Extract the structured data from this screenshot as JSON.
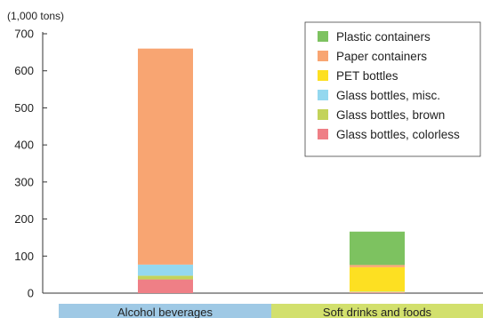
{
  "chart_data": {
    "type": "bar",
    "stacked": true,
    "unit_label": "(1,000 tons)",
    "ylim": [
      0,
      700
    ],
    "yticks": [
      0,
      100,
      200,
      300,
      400,
      500,
      600,
      700
    ],
    "grid": false,
    "legend_placement": "top-right",
    "categories": [
      "Alcohol beverages",
      "Soft drinks and foods"
    ],
    "category_colors": [
      "#9fc9e5",
      "#d2e06d"
    ],
    "series": [
      {
        "name": "Glass bottles, colorless",
        "color": "#ef7f86",
        "values": [
          37,
          2
        ]
      },
      {
        "name": "Glass bottles, brown",
        "color": "#c3d35a",
        "values": [
          10,
          1
        ]
      },
      {
        "name": "Glass bottles, misc.",
        "color": "#94d8ef",
        "values": [
          30,
          1
        ]
      },
      {
        "name": "PET bottles",
        "color": "#fde022",
        "values": [
          0,
          66
        ]
      },
      {
        "name": "Paper containers",
        "color": "#f8a572",
        "values": [
          583,
          6
        ]
      },
      {
        "name": "Plastic containers",
        "color": "#7dc260",
        "values": [
          0,
          90
        ]
      }
    ],
    "legend_order": [
      "Plastic containers",
      "Paper containers",
      "PET bottles",
      "Glass bottles, misc.",
      "Glass bottles, brown",
      "Glass bottles, colorless"
    ]
  }
}
